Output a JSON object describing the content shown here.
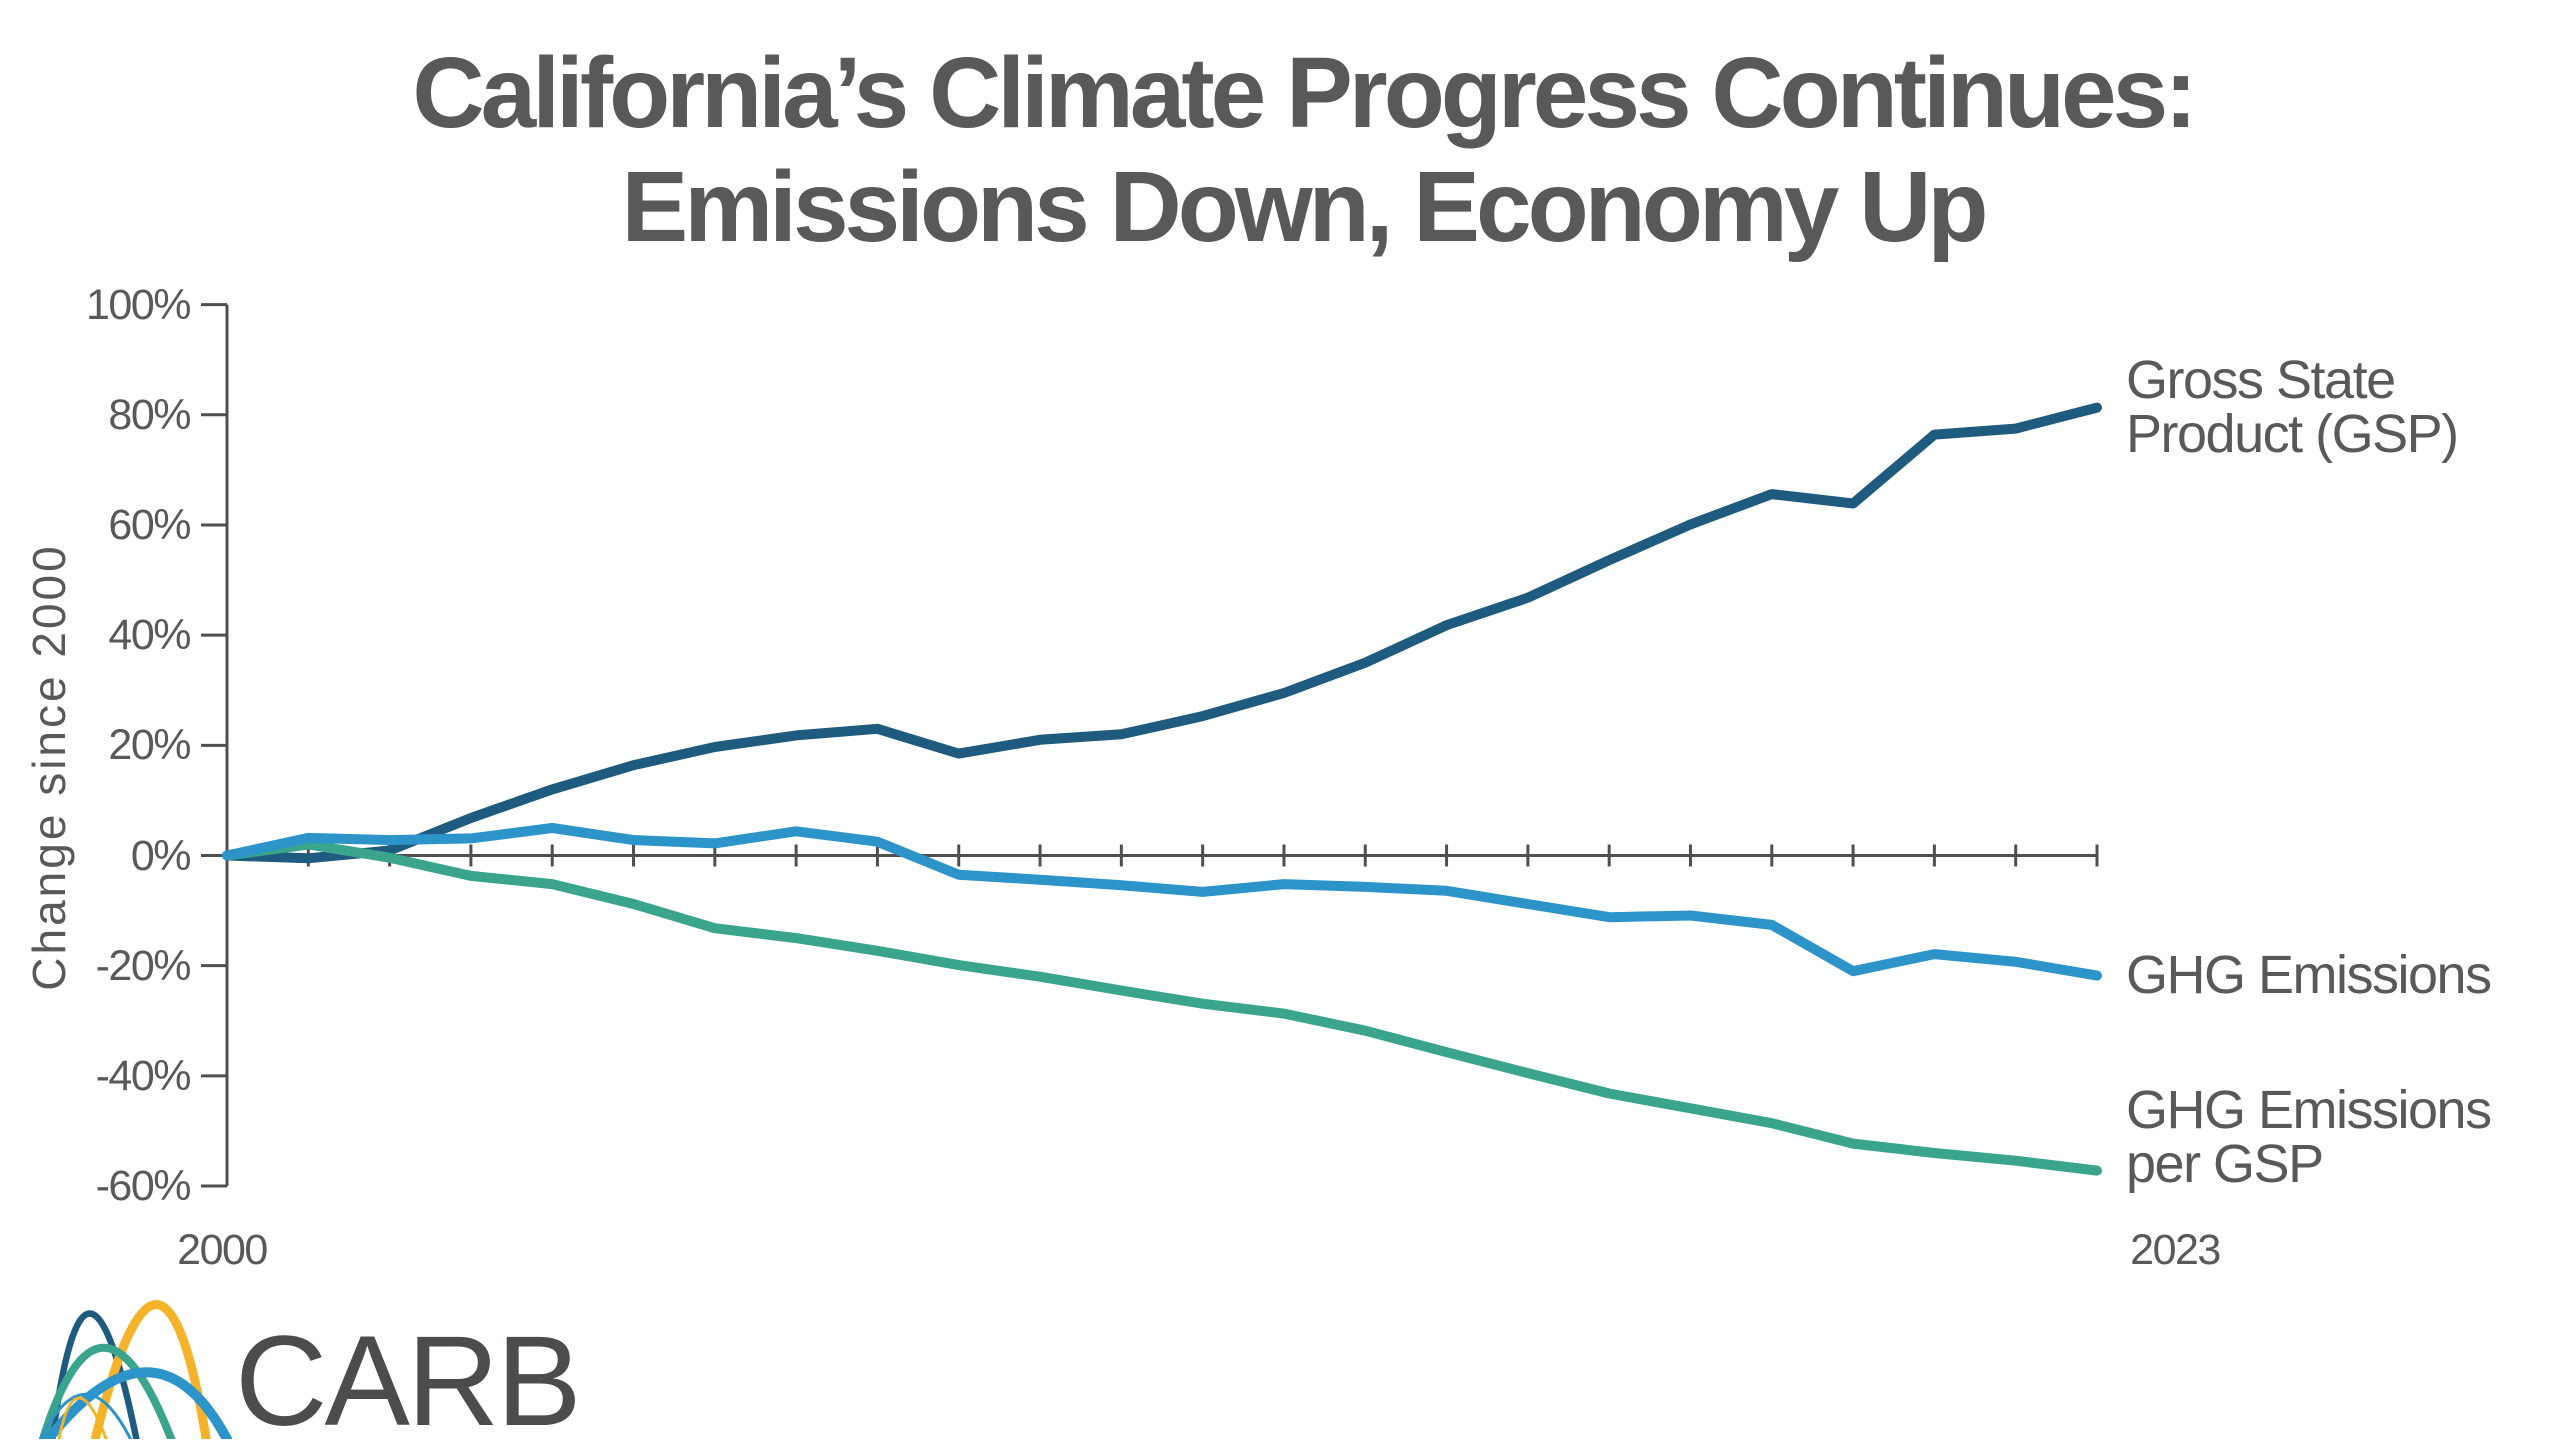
{
  "title": {
    "line1": "California’s Climate Progress Continues:",
    "line2": "Emissions Down, Economy Up"
  },
  "chart_data": {
    "type": "line",
    "title": "California's Climate Progress Continues: Emissions Down, Economy Up",
    "xlabel": "",
    "ylabel": "Change since 2000",
    "xlim": [
      2000,
      2023
    ],
    "ylim": [
      -60,
      100
    ],
    "grid": false,
    "legend_position": "right of line ends",
    "x": [
      2000,
      2001,
      2002,
      2003,
      2004,
      2005,
      2006,
      2007,
      2008,
      2009,
      2010,
      2011,
      2012,
      2013,
      2014,
      2015,
      2016,
      2017,
      2018,
      2019,
      2020,
      2021,
      2022,
      2023
    ],
    "x_tick_labels": [
      "2000",
      "2023"
    ],
    "y_ticks": [
      {
        "label": "100%",
        "value": 100
      },
      {
        "label": "80%",
        "value": 80
      },
      {
        "label": "60%",
        "value": 60
      },
      {
        "label": "40%",
        "value": 40
      },
      {
        "label": "20%",
        "value": 20
      },
      {
        "label": "0%",
        "value": 0
      },
      {
        "label": "-20%",
        "value": -20
      },
      {
        "label": "-40%",
        "value": -40
      },
      {
        "label": "-60%",
        "value": -60
      }
    ],
    "unit": "percent change since 2000",
    "series": [
      {
        "name": "Gross State Product (GSP)",
        "label_lines": [
          "Gross State",
          "Product (GSP)"
        ],
        "color": "#1e5b7e",
        "values": [
          0,
          -0.5,
          0.9,
          6.8,
          12.0,
          16.4,
          19.7,
          21.8,
          23.0,
          18.5,
          21.0,
          22.0,
          25.3,
          29.5,
          35.0,
          41.8,
          46.8,
          53.6,
          60.1,
          65.6,
          63.9,
          76.4,
          77.5,
          81.3
        ]
      },
      {
        "name": "GHG Emissions per GSP",
        "label_lines": [
          "GHG Emissions",
          "per GSP"
        ],
        "color": "#3aa58c",
        "values": [
          0,
          2.0,
          -0.4,
          -3.7,
          -5.2,
          -8.8,
          -13.2,
          -15.0,
          -17.3,
          -19.9,
          -22.0,
          -24.5,
          -26.9,
          -28.7,
          -31.8,
          -35.7,
          -39.5,
          -43.2,
          -45.9,
          -48.6,
          -52.3,
          -54.0,
          -55.4,
          -57.2
        ]
      },
      {
        "name": "GHG Emissions",
        "label_lines": [
          "GHG Emissions"
        ],
        "color": "#2d94ca",
        "values": [
          0,
          3.2,
          2.8,
          3.1,
          5.0,
          2.8,
          2.2,
          4.4,
          2.5,
          -3.5,
          -4.4,
          -5.4,
          -6.6,
          -5.2,
          -5.7,
          -6.4,
          -8.8,
          -11.2,
          -10.9,
          -12.6,
          -21.0,
          -17.9,
          -19.3,
          -21.8
        ]
      }
    ],
    "axis_color": "#4e4f51"
  },
  "logo": {
    "wordmark": "CARB",
    "arc_colors": [
      "#1e5b7e",
      "#f5b32a",
      "#3aa58c",
      "#2d94ca"
    ]
  }
}
